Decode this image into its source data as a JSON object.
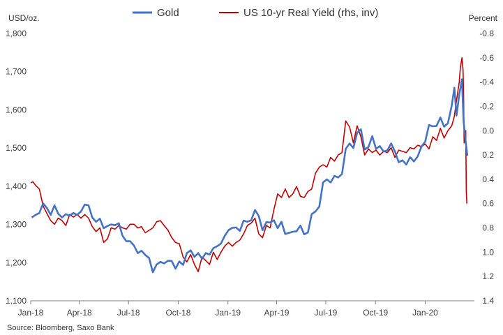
{
  "chart_data": {
    "type": "line",
    "left_axis_unit": "USD/oz.",
    "right_axis_unit": "Percent",
    "source": "Source: Bloomberg, Saxo Bank",
    "left_ylim": [
      1100,
      1800
    ],
    "left_ticks": [
      "1,100",
      "1,200",
      "1,300",
      "1,400",
      "1,500",
      "1,600",
      "1,700",
      "1,800"
    ],
    "left_tick_values": [
      1100,
      1200,
      1300,
      1400,
      1500,
      1600,
      1700,
      1800
    ],
    "right_ylim_inverted": [
      -0.8,
      1.4
    ],
    "right_ticks": [
      "-0.8",
      "-0.6",
      "-0.4",
      "-0.2",
      "0.0",
      "0.2",
      "0.4",
      "0.6",
      "0.8",
      "1.0",
      "1.2",
      "1.4"
    ],
    "right_tick_values": [
      -0.8,
      -0.6,
      -0.4,
      -0.2,
      0.0,
      0.2,
      0.4,
      0.6,
      0.8,
      1.0,
      1.2,
      1.4
    ],
    "x_range": [
      "2018-01-01",
      "2020-04-01"
    ],
    "x_ticks": [
      {
        "label": "Jan-18",
        "date": "2018-01-01"
      },
      {
        "label": "Apr-18",
        "date": "2018-04-01"
      },
      {
        "label": "Jul-18",
        "date": "2018-07-01"
      },
      {
        "label": "Oct-18",
        "date": "2018-10-01"
      },
      {
        "label": "Jan-19",
        "date": "2019-01-01"
      },
      {
        "label": "Apr-19",
        "date": "2019-04-01"
      },
      {
        "label": "Jul-19",
        "date": "2019-07-01"
      },
      {
        "label": "Oct-19",
        "date": "2019-10-01"
      },
      {
        "label": "Jan-20",
        "date": "2020-01-01"
      }
    ],
    "legend_position": "top",
    "series": [
      {
        "name": "Gold",
        "axis": "left",
        "color": "#4472C4",
        "points": [
          [
            "2018-01-03",
            1318
          ],
          [
            "2018-01-10",
            1325
          ],
          [
            "2018-01-17",
            1330
          ],
          [
            "2018-01-24",
            1355
          ],
          [
            "2018-01-31",
            1343
          ],
          [
            "2018-02-07",
            1325
          ],
          [
            "2018-02-14",
            1350
          ],
          [
            "2018-02-21",
            1328
          ],
          [
            "2018-02-28",
            1318
          ],
          [
            "2018-03-07",
            1327
          ],
          [
            "2018-03-14",
            1323
          ],
          [
            "2018-03-21",
            1330
          ],
          [
            "2018-03-28",
            1325
          ],
          [
            "2018-04-04",
            1334
          ],
          [
            "2018-04-11",
            1352
          ],
          [
            "2018-04-18",
            1350
          ],
          [
            "2018-04-25",
            1318
          ],
          [
            "2018-05-02",
            1307
          ],
          [
            "2018-05-09",
            1315
          ],
          [
            "2018-05-16",
            1290
          ],
          [
            "2018-05-23",
            1296
          ],
          [
            "2018-05-30",
            1300
          ],
          [
            "2018-06-06",
            1298
          ],
          [
            "2018-06-13",
            1303
          ],
          [
            "2018-06-20",
            1270
          ],
          [
            "2018-06-27",
            1256
          ],
          [
            "2018-07-04",
            1256
          ],
          [
            "2018-07-11",
            1245
          ],
          [
            "2018-07-18",
            1225
          ],
          [
            "2018-07-25",
            1231
          ],
          [
            "2018-08-01",
            1220
          ],
          [
            "2018-08-08",
            1212
          ],
          [
            "2018-08-15",
            1175
          ],
          [
            "2018-08-22",
            1195
          ],
          [
            "2018-08-29",
            1202
          ],
          [
            "2018-09-05",
            1198
          ],
          [
            "2018-09-12",
            1205
          ],
          [
            "2018-09-19",
            1204
          ],
          [
            "2018-09-26",
            1184
          ],
          [
            "2018-10-03",
            1203
          ],
          [
            "2018-10-10",
            1194
          ],
          [
            "2018-10-17",
            1225
          ],
          [
            "2018-10-24",
            1232
          ],
          [
            "2018-10-31",
            1215
          ],
          [
            "2018-11-07",
            1225
          ],
          [
            "2018-11-14",
            1210
          ],
          [
            "2018-11-21",
            1225
          ],
          [
            "2018-11-28",
            1221
          ],
          [
            "2018-12-05",
            1238
          ],
          [
            "2018-12-12",
            1243
          ],
          [
            "2018-12-19",
            1250
          ],
          [
            "2018-12-26",
            1270
          ],
          [
            "2019-01-02",
            1285
          ],
          [
            "2019-01-09",
            1291
          ],
          [
            "2019-01-16",
            1292
          ],
          [
            "2019-01-23",
            1283
          ],
          [
            "2019-01-30",
            1310
          ],
          [
            "2019-02-06",
            1307
          ],
          [
            "2019-02-13",
            1311
          ],
          [
            "2019-02-20",
            1338
          ],
          [
            "2019-02-27",
            1322
          ],
          [
            "2019-03-06",
            1285
          ],
          [
            "2019-03-13",
            1306
          ],
          [
            "2019-03-20",
            1305
          ],
          [
            "2019-03-27",
            1311
          ],
          [
            "2019-04-03",
            1290
          ],
          [
            "2019-04-10",
            1307
          ],
          [
            "2019-04-17",
            1275
          ],
          [
            "2019-04-24",
            1278
          ],
          [
            "2019-05-01",
            1281
          ],
          [
            "2019-05-08",
            1282
          ],
          [
            "2019-05-15",
            1297
          ],
          [
            "2019-05-22",
            1274
          ],
          [
            "2019-05-29",
            1279
          ],
          [
            "2019-06-05",
            1327
          ],
          [
            "2019-06-12",
            1334
          ],
          [
            "2019-06-19",
            1347
          ],
          [
            "2019-06-26",
            1410
          ],
          [
            "2019-07-03",
            1418
          ],
          [
            "2019-07-10",
            1410
          ],
          [
            "2019-07-17",
            1427
          ],
          [
            "2019-07-24",
            1423
          ],
          [
            "2019-07-31",
            1432
          ],
          [
            "2019-08-07",
            1498
          ],
          [
            "2019-08-14",
            1512
          ],
          [
            "2019-08-21",
            1500
          ],
          [
            "2019-08-28",
            1540
          ],
          [
            "2019-09-04",
            1549
          ],
          [
            "2019-09-11",
            1496
          ],
          [
            "2019-09-18",
            1503
          ],
          [
            "2019-09-25",
            1531
          ],
          [
            "2019-10-02",
            1498
          ],
          [
            "2019-10-09",
            1505
          ],
          [
            "2019-10-16",
            1491
          ],
          [
            "2019-10-23",
            1494
          ],
          [
            "2019-10-30",
            1512
          ],
          [
            "2019-11-06",
            1491
          ],
          [
            "2019-11-13",
            1463
          ],
          [
            "2019-11-20",
            1468
          ],
          [
            "2019-11-27",
            1457
          ],
          [
            "2019-12-04",
            1476
          ],
          [
            "2019-12-11",
            1465
          ],
          [
            "2019-12-18",
            1478
          ],
          [
            "2019-12-25",
            1504
          ],
          [
            "2020-01-01",
            1517
          ],
          [
            "2020-01-08",
            1560
          ],
          [
            "2020-01-15",
            1557
          ],
          [
            "2020-01-22",
            1558
          ],
          [
            "2020-01-29",
            1580
          ],
          [
            "2020-02-05",
            1556
          ],
          [
            "2020-02-12",
            1565
          ],
          [
            "2020-02-19",
            1611
          ],
          [
            "2020-02-24",
            1658
          ],
          [
            "2020-02-28",
            1585
          ],
          [
            "2020-03-04",
            1640
          ],
          [
            "2020-03-09",
            1680
          ],
          [
            "2020-03-12",
            1570
          ],
          [
            "2020-03-16",
            1515
          ],
          [
            "2020-03-19",
            1480
          ]
        ]
      },
      {
        "name": "US 10-yr Real Yield (rhs, inv)",
        "axis": "right",
        "color": "#C00000",
        "points": [
          [
            "2018-01-01",
            0.43
          ],
          [
            "2018-01-05",
            0.42
          ],
          [
            "2018-01-10",
            0.45
          ],
          [
            "2018-01-17",
            0.48
          ],
          [
            "2018-01-24",
            0.62
          ],
          [
            "2018-01-31",
            0.68
          ],
          [
            "2018-02-07",
            0.74
          ],
          [
            "2018-02-14",
            0.77
          ],
          [
            "2018-02-21",
            0.72
          ],
          [
            "2018-02-28",
            0.74
          ],
          [
            "2018-03-07",
            0.78
          ],
          [
            "2018-03-14",
            0.69
          ],
          [
            "2018-03-21",
            0.71
          ],
          [
            "2018-03-28",
            0.69
          ],
          [
            "2018-04-04",
            0.72
          ],
          [
            "2018-04-11",
            0.69
          ],
          [
            "2018-04-18",
            0.72
          ],
          [
            "2018-04-25",
            0.79
          ],
          [
            "2018-05-02",
            0.83
          ],
          [
            "2018-05-09",
            0.8
          ],
          [
            "2018-05-16",
            0.92
          ],
          [
            "2018-05-23",
            0.89
          ],
          [
            "2018-05-30",
            0.8
          ],
          [
            "2018-06-06",
            0.81
          ],
          [
            "2018-06-13",
            0.78
          ],
          [
            "2018-06-20",
            0.8
          ],
          [
            "2018-06-27",
            0.81
          ],
          [
            "2018-07-04",
            0.77
          ],
          [
            "2018-07-11",
            0.77
          ],
          [
            "2018-07-18",
            0.8
          ],
          [
            "2018-07-25",
            0.79
          ],
          [
            "2018-08-01",
            0.84
          ],
          [
            "2018-08-08",
            0.82
          ],
          [
            "2018-08-15",
            0.8
          ],
          [
            "2018-08-22",
            0.75
          ],
          [
            "2018-08-29",
            0.74
          ],
          [
            "2018-09-05",
            0.78
          ],
          [
            "2018-09-12",
            0.82
          ],
          [
            "2018-09-19",
            0.88
          ],
          [
            "2018-09-26",
            0.92
          ],
          [
            "2018-10-03",
            0.93
          ],
          [
            "2018-10-10",
            1.04
          ],
          [
            "2018-10-17",
            1.08
          ],
          [
            "2018-10-24",
            1.02
          ],
          [
            "2018-10-31",
            1.1
          ],
          [
            "2018-11-07",
            1.16
          ],
          [
            "2018-11-14",
            1.04
          ],
          [
            "2018-11-21",
            1.07
          ],
          [
            "2018-11-28",
            1.1
          ],
          [
            "2018-12-05",
            1.0
          ],
          [
            "2018-12-12",
            1.06
          ],
          [
            "2018-12-19",
            1.0
          ],
          [
            "2018-12-26",
            0.95
          ],
          [
            "2019-01-02",
            0.92
          ],
          [
            "2019-01-09",
            0.95
          ],
          [
            "2019-01-16",
            0.92
          ],
          [
            "2019-01-23",
            0.9
          ],
          [
            "2019-01-30",
            0.85
          ],
          [
            "2019-02-06",
            0.78
          ],
          [
            "2019-02-13",
            0.76
          ],
          [
            "2019-02-20",
            0.72
          ],
          [
            "2019-02-27",
            0.85
          ],
          [
            "2019-03-06",
            0.88
          ],
          [
            "2019-03-13",
            0.78
          ],
          [
            "2019-03-20",
            0.8
          ],
          [
            "2019-03-27",
            0.65
          ],
          [
            "2019-04-03",
            0.52
          ],
          [
            "2019-04-10",
            0.55
          ],
          [
            "2019-04-17",
            0.48
          ],
          [
            "2019-04-24",
            0.55
          ],
          [
            "2019-05-01",
            0.52
          ],
          [
            "2019-05-08",
            0.46
          ],
          [
            "2019-05-15",
            0.54
          ],
          [
            "2019-05-22",
            0.55
          ],
          [
            "2019-05-29",
            0.5
          ],
          [
            "2019-06-05",
            0.48
          ],
          [
            "2019-06-12",
            0.35
          ],
          [
            "2019-06-19",
            0.3
          ],
          [
            "2019-06-26",
            0.28
          ],
          [
            "2019-07-03",
            0.3
          ],
          [
            "2019-07-10",
            0.22
          ],
          [
            "2019-07-17",
            0.25
          ],
          [
            "2019-07-24",
            0.2
          ],
          [
            "2019-07-31",
            0.18
          ],
          [
            "2019-08-07",
            -0.08
          ],
          [
            "2019-08-14",
            -0.03
          ],
          [
            "2019-08-21",
            0.1
          ],
          [
            "2019-08-28",
            -0.04
          ],
          [
            "2019-09-04",
            0.05
          ],
          [
            "2019-09-11",
            0.2
          ],
          [
            "2019-09-18",
            0.15
          ],
          [
            "2019-09-25",
            0.18
          ],
          [
            "2019-10-02",
            0.16
          ],
          [
            "2019-10-09",
            0.2
          ],
          [
            "2019-10-16",
            0.17
          ],
          [
            "2019-10-23",
            0.18
          ],
          [
            "2019-10-30",
            0.14
          ],
          [
            "2019-11-06",
            0.22
          ],
          [
            "2019-11-13",
            0.16
          ],
          [
            "2019-11-20",
            0.17
          ],
          [
            "2019-11-27",
            0.18
          ],
          [
            "2019-12-04",
            0.14
          ],
          [
            "2019-12-11",
            0.15
          ],
          [
            "2019-12-18",
            0.12
          ],
          [
            "2019-12-25",
            0.13
          ],
          [
            "2020-01-01",
            0.11
          ],
          [
            "2020-01-08",
            0.15
          ],
          [
            "2020-01-15",
            0.05
          ],
          [
            "2020-01-22",
            0.08
          ],
          [
            "2020-01-29",
            -0.02
          ],
          [
            "2020-02-05",
            0.06
          ],
          [
            "2020-02-12",
            0.0
          ],
          [
            "2020-02-19",
            -0.04
          ],
          [
            "2020-02-24",
            -0.12
          ],
          [
            "2020-02-28",
            -0.25
          ],
          [
            "2020-03-04",
            -0.4
          ],
          [
            "2020-03-06",
            -0.52
          ],
          [
            "2020-03-09",
            -0.6
          ],
          [
            "2020-03-11",
            -0.5
          ],
          [
            "2020-03-12",
            -0.3
          ],
          [
            "2020-03-13",
            0.1
          ],
          [
            "2020-03-16",
            0.0
          ],
          [
            "2020-03-17",
            0.5
          ],
          [
            "2020-03-18",
            0.6
          ]
        ]
      }
    ]
  }
}
